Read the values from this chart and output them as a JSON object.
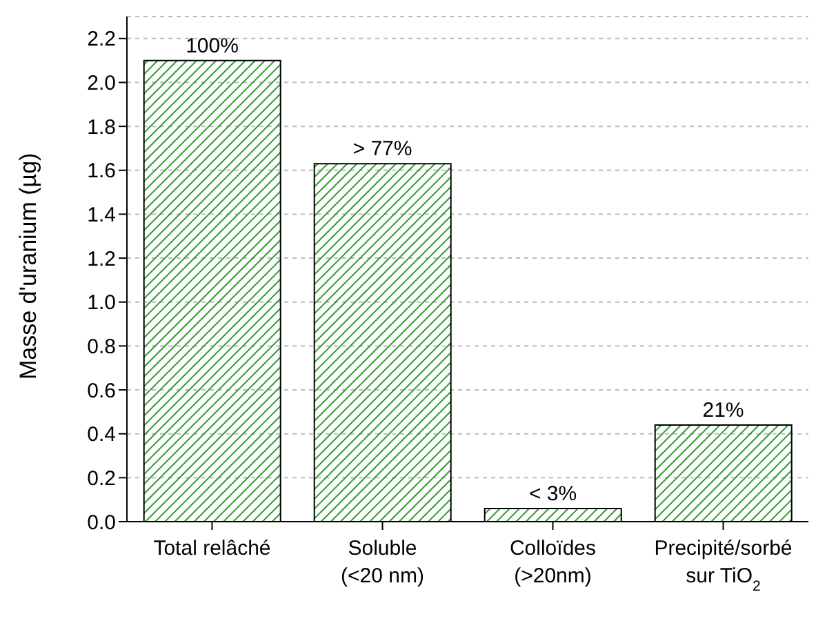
{
  "chart_data": {
    "type": "bar",
    "ylabel": "Masse d'uranium (µg)",
    "categories": [
      "Total relâché",
      "Soluble\n(<20 nm)",
      "Colloïdes\n(>20nm)",
      "Precipité/sorbé\nsur TiO$_{2}$"
    ],
    "values": [
      2.1,
      1.63,
      0.06,
      0.44
    ],
    "annotations": [
      {
        "text": "100%",
        "x": "Total relâché",
        "y": 2.1
      },
      {
        "text": "> 77%",
        "x": "Soluble\n(<20 nm)",
        "y": 1.63
      },
      {
        "text": "< 3%",
        "x": "Colloïdes\n(>20nm)",
        "y": 0.06
      },
      {
        "text": "21%",
        "x": "Precipité/sorbé\nsur TiO$_{2}$",
        "y": 0.44
      }
    ],
    "color": "#2e9a2e",
    "ylim": [
      0,
      2.3
    ],
    "yticks": [
      {
        "value": 0,
        "label": "0.0"
      },
      0.2,
      0.4,
      0.6,
      0.8,
      {
        "value": 1,
        "label": "1.0"
      },
      1.2,
      1.4,
      1.6,
      1.8,
      {
        "value": 2,
        "label": "2.0"
      },
      2.2
    ],
    "grid": "y"
  }
}
